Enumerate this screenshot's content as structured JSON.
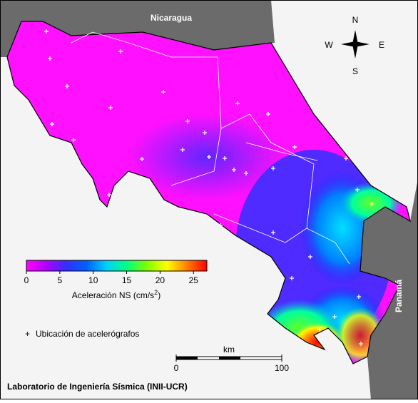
{
  "labels": {
    "nicaragua": "Nicaragua",
    "panama": "Panamá"
  },
  "compass": {
    "n": "N",
    "s": "S",
    "w": "W",
    "e": "E"
  },
  "colorbar": {
    "lim": [
      0,
      27
    ],
    "ticks": [
      0,
      5,
      10,
      15,
      20,
      25
    ],
    "label": "Aceleración NS (cm/s",
    "label_sup": "2",
    "label_end": ")",
    "colors": [
      "#ff00ff",
      "#b000ff",
      "#3030ff",
      "#0060ff",
      "#00d0ff",
      "#00ff80",
      "#80ff00",
      "#ffff00",
      "#ff8000",
      "#ff0000"
    ]
  },
  "legend": {
    "marker": "+",
    "text": "Ubicación de acelerógrafos"
  },
  "scale_bar": {
    "unit": "km",
    "lim": [
      0,
      100
    ],
    "ticks": [
      0,
      100
    ]
  },
  "footer": "Laboratorio de Ingeniería Sísmica (INII-UCR)"
}
